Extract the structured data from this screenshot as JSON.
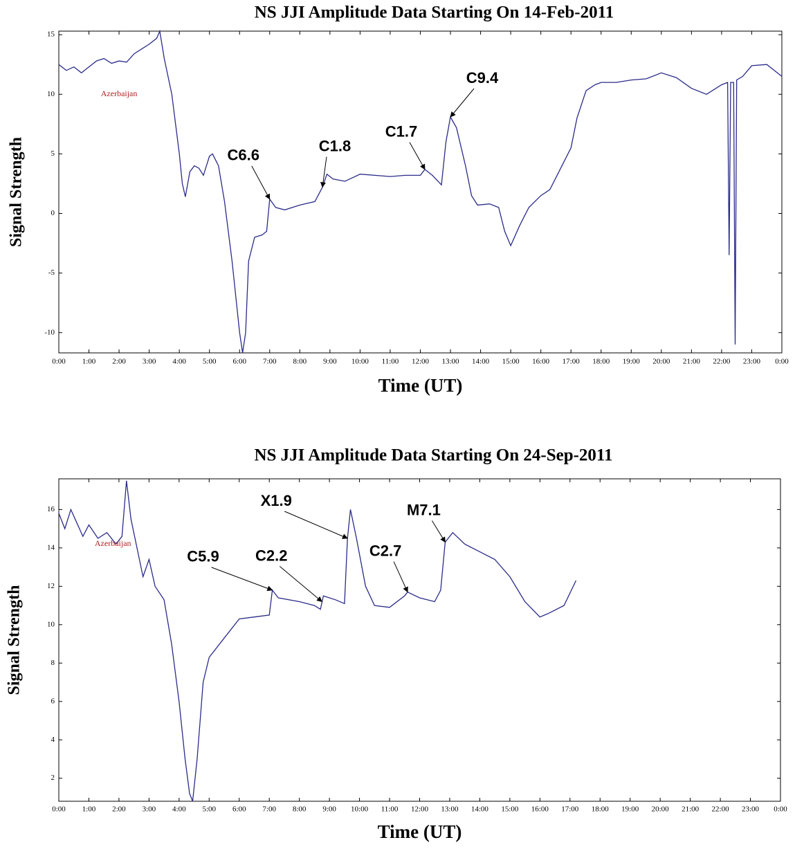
{
  "chart_data": [
    {
      "type": "line",
      "title": "NS JJI Amplitude Data Starting On 14-Feb-2011",
      "x_label": "Time (UT)",
      "y_label": "Signal Strength",
      "xlim": [
        0,
        24
      ],
      "ylim": [
        -11.7,
        15.3
      ],
      "xticks": [
        {
          "value": 0,
          "label": "0:00"
        },
        {
          "value": 1,
          "label": "1:00"
        },
        {
          "value": 2,
          "label": "2:00"
        },
        {
          "value": 3,
          "label": "3:00"
        },
        {
          "value": 4,
          "label": "4:00"
        },
        {
          "value": 5,
          "label": "5:00"
        },
        {
          "value": 6,
          "label": "6:00"
        },
        {
          "value": 7,
          "label": "7:00"
        },
        {
          "value": 8,
          "label": "8:00"
        },
        {
          "value": 9,
          "label": "9:00"
        },
        {
          "value": 10,
          "label": "10:00"
        },
        {
          "value": 11,
          "label": "11:00"
        },
        {
          "value": 12,
          "label": "12:00"
        },
        {
          "value": 13,
          "label": "13:00"
        },
        {
          "value": 14,
          "label": "14:00"
        },
        {
          "value": 15,
          "label": "15:00"
        },
        {
          "value": 16,
          "label": "16:00"
        },
        {
          "value": 17,
          "label": "17:00"
        },
        {
          "value": 18,
          "label": "18:00"
        },
        {
          "value": 19,
          "label": "19:00"
        },
        {
          "value": 20,
          "label": "20:00"
        },
        {
          "value": 21,
          "label": "21:00"
        },
        {
          "value": 22,
          "label": "22:00"
        },
        {
          "value": 23,
          "label": "23:00"
        },
        {
          "value": 24,
          "label": "0:00"
        }
      ],
      "yticks": [
        -10,
        -5,
        0,
        5,
        10,
        15
      ],
      "series": [
        {
          "color": "#2a2a8a",
          "x": [
            0,
            0.25,
            0.5,
            0.75,
            1,
            1.25,
            1.5,
            1.75,
            2,
            2.25,
            2.5,
            2.75,
            3,
            3.25,
            3.35,
            3.5,
            3.75,
            4,
            4.1,
            4.2,
            4.35,
            4.5,
            4.65,
            4.8,
            5,
            5.1,
            5.3,
            5.5,
            5.75,
            6,
            6.1,
            6.2,
            6.3,
            6.5,
            6.75,
            6.9,
            7,
            7.2,
            7.5,
            8,
            8.5,
            8.75,
            8.9,
            9.1,
            9.5,
            10,
            11,
            11.5,
            12,
            12.15,
            12.4,
            12.7,
            12.85,
            13,
            13.2,
            13.5,
            13.7,
            13.9,
            14.3,
            14.6,
            14.8,
            15,
            15.3,
            15.6,
            16,
            16.3,
            16.6,
            17,
            17.2,
            17.5,
            17.8,
            18,
            18.5,
            19,
            19.5,
            20,
            20.5,
            21,
            21.5,
            22,
            22.2,
            22.25,
            22.3,
            22.4,
            22.45,
            22.5,
            22.7,
            23,
            23.5,
            24
          ],
          "values": [
            12.5,
            12,
            12.3,
            11.8,
            12.3,
            12.8,
            13,
            12.6,
            12.8,
            12.7,
            13.4,
            13.8,
            14.2,
            14.7,
            15.3,
            13,
            10,
            5,
            2.5,
            1.4,
            3.5,
            4,
            3.8,
            3.2,
            4.8,
            5,
            4,
            1,
            -4,
            -10,
            -11.7,
            -10,
            -4,
            -2,
            -1.8,
            -1.5,
            1.2,
            0.5,
            0.3,
            0.7,
            1,
            2.2,
            3.3,
            2.9,
            2.7,
            3.3,
            3.1,
            3.2,
            3.2,
            3.7,
            3.2,
            2.4,
            6,
            8.1,
            7.2,
            4,
            1.5,
            0.7,
            0.8,
            0.5,
            -1.5,
            -2.7,
            -1,
            0.5,
            1.5,
            2,
            3.5,
            5.5,
            8,
            10.3,
            10.8,
            11,
            11,
            11.2,
            11.3,
            11.8,
            11.4,
            10.5,
            10,
            10.8,
            11,
            -3.5,
            11,
            11,
            -11,
            11.2,
            11.5,
            12.4,
            12.5,
            11.5
          ]
        }
      ],
      "annotations": [
        {
          "text": "Azerbaijan",
          "x": 2,
          "y": 10
        },
        {
          "text": "C6.6",
          "x": 7,
          "y": 1.2
        },
        {
          "text": "C1.8",
          "x": 8.75,
          "y": 2.2
        },
        {
          "text": "C1.7",
          "x": 12.15,
          "y": 3.7
        },
        {
          "text": "C9.4",
          "x": 13,
          "y": 8.1
        }
      ]
    },
    {
      "type": "line",
      "title": "NS JJI Amplitude Data Starting On 24-Sep-2011",
      "x_label": "Time (UT)",
      "y_label": "Signal Strength",
      "xlim": [
        0,
        24
      ],
      "ylim": [
        0.8,
        17.6
      ],
      "xticks": [
        {
          "value": 0,
          "label": "0:00"
        },
        {
          "value": 1,
          "label": "1:00"
        },
        {
          "value": 2,
          "label": "2:00"
        },
        {
          "value": 3,
          "label": "3:00"
        },
        {
          "value": 4,
          "label": "4:00"
        },
        {
          "value": 5,
          "label": "5:00"
        },
        {
          "value": 6,
          "label": "6:00"
        },
        {
          "value": 7,
          "label": "7:00"
        },
        {
          "value": 8,
          "label": "8:00"
        },
        {
          "value": 9,
          "label": "9:00"
        },
        {
          "value": 10,
          "label": "10:00"
        },
        {
          "value": 11,
          "label": "11:00"
        },
        {
          "value": 12,
          "label": "12:00"
        },
        {
          "value": 13,
          "label": "13:00"
        },
        {
          "value": 14,
          "label": "14:00"
        },
        {
          "value": 15,
          "label": "15:00"
        },
        {
          "value": 16,
          "label": "16:00"
        },
        {
          "value": 17,
          "label": "17:00"
        },
        {
          "value": 18,
          "label": "18:00"
        },
        {
          "value": 19,
          "label": "19:00"
        },
        {
          "value": 20,
          "label": "20:00"
        },
        {
          "value": 21,
          "label": "21:00"
        },
        {
          "value": 22,
          "label": "22:00"
        },
        {
          "value": 23,
          "label": "23:00"
        },
        {
          "value": 24,
          "label": "0:00"
        }
      ],
      "yticks": [
        2,
        4,
        6,
        8,
        10,
        12,
        14,
        16
      ],
      "series": [
        {
          "color": "#2a2a8a",
          "x": [
            0,
            0.2,
            0.4,
            0.6,
            0.8,
            1,
            1.3,
            1.6,
            1.9,
            2.1,
            2.25,
            2.4,
            2.6,
            2.8,
            3,
            3.2,
            3.5,
            3.75,
            4,
            4.2,
            4.35,
            4.45,
            4.6,
            4.8,
            5,
            5.5,
            6,
            6.5,
            7,
            7.1,
            7.3,
            8,
            8.5,
            8.7,
            8.8,
            9.2,
            9.5,
            9.6,
            9.7,
            9.9,
            10.2,
            10.5,
            11,
            11.5,
            11.6,
            12,
            12.5,
            12.7,
            12.85,
            13.1,
            13.5,
            14,
            14.5,
            15,
            15.5,
            16,
            16.3,
            16.8,
            17.2
          ],
          "values": [
            15.8,
            15,
            16,
            15.3,
            14.6,
            15.2,
            14.5,
            14.8,
            14.2,
            14.6,
            17.5,
            15.5,
            14,
            12.5,
            13.4,
            12,
            11.3,
            9,
            6,
            3,
            1.2,
            0.8,
            3,
            7,
            8.3,
            9.3,
            10.3,
            10.4,
            10.5,
            11.8,
            11.4,
            11.2,
            11,
            10.8,
            11.5,
            11.3,
            11.1,
            14.5,
            16,
            14.5,
            12,
            11,
            10.9,
            11.5,
            11.7,
            11.4,
            11.2,
            11.8,
            14.3,
            14.8,
            14.2,
            13.8,
            13.4,
            12.5,
            11.2,
            10.4,
            10.6,
            11,
            12.3
          ]
        }
      ],
      "annotations": [
        {
          "text": "Azerbaijan",
          "x": 1.8,
          "y": 14.2
        },
        {
          "text": "C5.9",
          "x": 7.1,
          "y": 11.8
        },
        {
          "text": "C2.2",
          "x": 8.75,
          "y": 11.2
        },
        {
          "text": "X1.9",
          "x": 9.6,
          "y": 14.5
        },
        {
          "text": "C2.7",
          "x": 11.6,
          "y": 11.7
        },
        {
          "text": "M7.1",
          "x": 12.85,
          "y": 14.3
        }
      ]
    }
  ]
}
